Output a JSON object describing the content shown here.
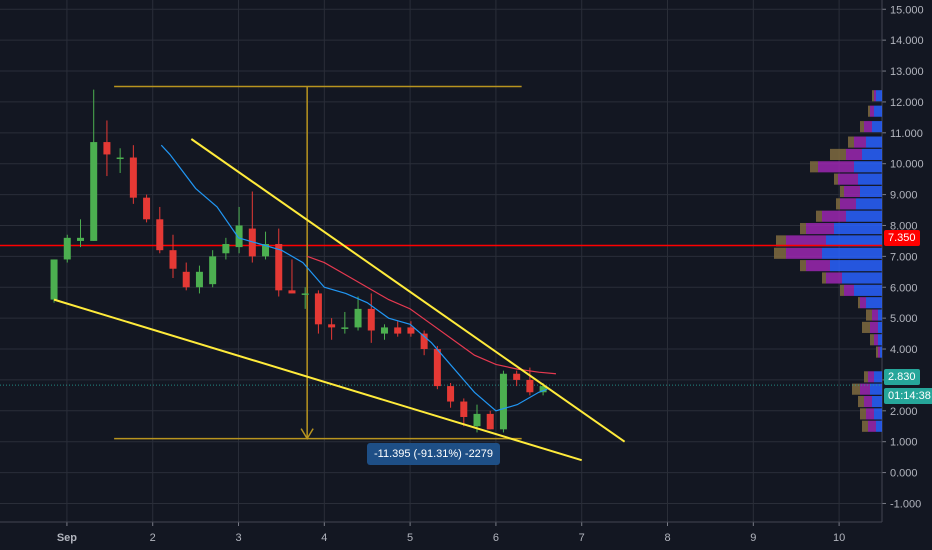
{
  "chart_data": {
    "type": "candlestick",
    "y_axis": {
      "ylim": [
        -1.6,
        15.3
      ],
      "ticks": [
        15,
        14,
        13,
        12,
        11,
        10,
        9,
        8,
        7,
        6,
        5,
        4,
        3,
        2,
        1,
        0,
        -1
      ],
      "tick_labels": [
        "15.000",
        "14.000",
        "13.000",
        "12.000",
        "11.000",
        "10.000",
        "9.000",
        "8.000",
        "7.000",
        "6.000",
        "5.000",
        "4.000",
        "3.000",
        "2.000",
        "1.000",
        "0.000",
        "-1.000"
      ]
    },
    "x_axis": {
      "xlim": [
        0.22,
        10.5
      ],
      "ticks": [
        1,
        2,
        3,
        4,
        5,
        6,
        7,
        8,
        9,
        10
      ],
      "tick_labels": [
        "Sep",
        "2",
        "3",
        "4",
        "5",
        "6",
        "7",
        "8",
        "9",
        "10"
      ]
    },
    "candles": [
      {
        "o": 5.6,
        "h": 6.9,
        "l": 5.5,
        "c": 6.9
      },
      {
        "o": 6.9,
        "h": 7.7,
        "l": 6.8,
        "c": 7.6
      },
      {
        "o": 7.5,
        "h": 8.2,
        "l": 7.3,
        "c": 7.6
      },
      {
        "o": 7.5,
        "h": 12.4,
        "l": 7.5,
        "c": 10.7
      },
      {
        "o": 10.7,
        "h": 11.4,
        "l": 9.6,
        "c": 10.3
      },
      {
        "o": 10.2,
        "h": 10.5,
        "l": 9.7,
        "c": 10.2
      },
      {
        "o": 10.2,
        "h": 10.6,
        "l": 8.7,
        "c": 8.9
      },
      {
        "o": 8.9,
        "h": 9.0,
        "l": 8.1,
        "c": 8.2
      },
      {
        "o": 8.2,
        "h": 8.6,
        "l": 7.1,
        "c": 7.2
      },
      {
        "o": 7.2,
        "h": 7.7,
        "l": 6.3,
        "c": 6.6
      },
      {
        "o": 6.5,
        "h": 6.8,
        "l": 5.9,
        "c": 6.0
      },
      {
        "o": 6.0,
        "h": 6.7,
        "l": 5.8,
        "c": 6.5
      },
      {
        "o": 6.1,
        "h": 7.2,
        "l": 6.0,
        "c": 7.0
      },
      {
        "o": 7.1,
        "h": 7.6,
        "l": 6.9,
        "c": 7.4
      },
      {
        "o": 7.3,
        "h": 8.6,
        "l": 7.1,
        "c": 8.0
      },
      {
        "o": 7.9,
        "h": 9.1,
        "l": 6.8,
        "c": 7.0
      },
      {
        "o": 7.0,
        "h": 7.8,
        "l": 6.9,
        "c": 7.4
      },
      {
        "o": 7.4,
        "h": 7.9,
        "l": 5.7,
        "c": 5.9
      },
      {
        "o": 5.9,
        "h": 6.9,
        "l": 5.8,
        "c": 5.8
      },
      {
        "o": 5.8,
        "h": 6.0,
        "l": 5.3,
        "c": 5.8
      },
      {
        "o": 5.8,
        "h": 5.9,
        "l": 4.5,
        "c": 4.8
      },
      {
        "o": 4.8,
        "h": 5.0,
        "l": 4.3,
        "c": 4.7
      },
      {
        "o": 4.7,
        "h": 5.2,
        "l": 4.5,
        "c": 4.7
      },
      {
        "o": 4.7,
        "h": 5.7,
        "l": 4.6,
        "c": 5.3
      },
      {
        "o": 5.3,
        "h": 5.8,
        "l": 4.2,
        "c": 4.6
      },
      {
        "o": 4.5,
        "h": 4.8,
        "l": 4.3,
        "c": 4.7
      },
      {
        "o": 4.7,
        "h": 4.9,
        "l": 4.4,
        "c": 4.5
      },
      {
        "o": 4.7,
        "h": 4.9,
        "l": 4.4,
        "c": 4.5
      },
      {
        "o": 4.5,
        "h": 4.6,
        "l": 3.8,
        "c": 4.0
      },
      {
        "o": 4.0,
        "h": 4.1,
        "l": 2.7,
        "c": 2.8
      },
      {
        "o": 2.8,
        "h": 2.9,
        "l": 2.1,
        "c": 2.3
      },
      {
        "o": 2.3,
        "h": 2.4,
        "l": 1.5,
        "c": 1.8
      },
      {
        "o": 1.5,
        "h": 2.2,
        "l": 1.3,
        "c": 1.9
      },
      {
        "o": 1.9,
        "h": 2.0,
        "l": 1.4,
        "c": 1.4
      },
      {
        "o": 1.4,
        "h": 3.3,
        "l": 1.3,
        "c": 3.2
      },
      {
        "o": 3.2,
        "h": 3.3,
        "l": 2.8,
        "c": 3.0
      },
      {
        "o": 3.0,
        "h": 3.4,
        "l": 2.5,
        "c": 2.6
      },
      {
        "o": 2.6,
        "h": 2.9,
        "l": 2.5,
        "c": 2.8
      }
    ],
    "ma_blue": [
      [
        2.1,
        10.6
      ],
      [
        2.2,
        10.3
      ],
      [
        2.5,
        9.2
      ],
      [
        2.75,
        8.6
      ],
      [
        3.0,
        7.6
      ],
      [
        3.25,
        7.4
      ],
      [
        3.5,
        7.2
      ],
      [
        3.75,
        6.8
      ],
      [
        4.0,
        6.0
      ],
      [
        4.25,
        5.8
      ],
      [
        4.5,
        5.5
      ],
      [
        4.75,
        5.0
      ],
      [
        5.0,
        4.8
      ],
      [
        5.25,
        4.2
      ],
      [
        5.5,
        3.4
      ],
      [
        5.75,
        2.6
      ],
      [
        6.0,
        2.0
      ],
      [
        6.25,
        2.2
      ],
      [
        6.5,
        2.6
      ],
      [
        6.6,
        2.7
      ]
    ],
    "ma_red": [
      [
        3.8,
        7.0
      ],
      [
        4.0,
        6.8
      ],
      [
        4.25,
        6.4
      ],
      [
        4.5,
        6.0
      ],
      [
        4.75,
        5.6
      ],
      [
        5.0,
        5.3
      ],
      [
        5.25,
        4.8
      ],
      [
        5.5,
        4.3
      ],
      [
        5.75,
        3.8
      ],
      [
        6.0,
        3.5
      ],
      [
        6.25,
        3.35
      ],
      [
        6.5,
        3.25
      ],
      [
        6.7,
        3.2
      ]
    ],
    "horizontal_line": {
      "price": 7.35,
      "color": "#ff0000"
    },
    "current_price_line": {
      "price": 2.83,
      "color": "#26a69a"
    },
    "trend_lines": [
      {
        "from": [
          2.45,
          10.8
        ],
        "to": [
          7.5,
          1.0
        ]
      },
      {
        "from": [
          0.85,
          5.6
        ],
        "to": [
          7.0,
          0.4
        ]
      }
    ],
    "measure_tool": {
      "top_price": 12.5,
      "bottom_price": 1.1,
      "x_from": 1.55,
      "x_to": 6.3,
      "x_arrow": 3.8,
      "label": "-11.395 (-91.31%) -2279"
    },
    "volume_profile": [
      {
        "p": 12.2,
        "buy": 3,
        "sell": 1,
        "val": 1
      },
      {
        "p": 11.7,
        "buy": 4,
        "sell": 2,
        "val": 1
      },
      {
        "p": 11.2,
        "buy": 5,
        "sell": 4,
        "val": 2
      },
      {
        "p": 10.7,
        "buy": 8,
        "sell": 6,
        "val": 3
      },
      {
        "p": 10.3,
        "buy": 10,
        "sell": 8,
        "val": 8
      },
      {
        "p": 9.9,
        "buy": 14,
        "sell": 18,
        "val": 4
      },
      {
        "p": 9.5,
        "buy": 12,
        "sell": 10,
        "val": 2
      },
      {
        "p": 9.1,
        "buy": 11,
        "sell": 8,
        "val": 2
      },
      {
        "p": 8.7,
        "buy": 13,
        "sell": 8,
        "val": 2
      },
      {
        "p": 8.3,
        "buy": 18,
        "sell": 12,
        "val": 3
      },
      {
        "p": 7.9,
        "buy": 24,
        "sell": 14,
        "val": 3
      },
      {
        "p": 7.5,
        "buy": 28,
        "sell": 20,
        "val": 5
      },
      {
        "p": 7.1,
        "buy": 30,
        "sell": 18,
        "val": 6
      },
      {
        "p": 6.7,
        "buy": 26,
        "sell": 12,
        "val": 3
      },
      {
        "p": 6.3,
        "buy": 20,
        "sell": 8,
        "val": 2
      },
      {
        "p": 5.9,
        "buy": 14,
        "sell": 5,
        "val": 2
      },
      {
        "p": 5.5,
        "buy": 8,
        "sell": 3,
        "val": 1
      },
      {
        "p": 5.1,
        "buy": 2,
        "sell": 3,
        "val": 3
      },
      {
        "p": 4.7,
        "buy": 2,
        "sell": 4,
        "val": 4
      },
      {
        "p": 4.3,
        "buy": 2,
        "sell": 2,
        "val": 2
      },
      {
        "p": 3.9,
        "buy": 1,
        "sell": 1,
        "val": 1
      },
      {
        "p": 3.1,
        "buy": 4,
        "sell": 3,
        "val": 2
      },
      {
        "p": 2.7,
        "buy": 6,
        "sell": 5,
        "val": 4
      },
      {
        "p": 2.3,
        "buy": 5,
        "sell": 4,
        "val": 3
      },
      {
        "p": 1.9,
        "buy": 4,
        "sell": 4,
        "val": 3
      },
      {
        "p": 1.5,
        "buy": 3,
        "sell": 4,
        "val": 3
      }
    ],
    "price_labels": {
      "horizontal": "7.350",
      "current": "2.830",
      "countdown": "01:14:38"
    },
    "colors": {
      "background": "#131722",
      "grid": "#2a2e39",
      "up": "#4caf50",
      "down": "#e53935",
      "trend": "#ffeb3b",
      "measure": "#b8941f",
      "ma_blue": "#2196f3",
      "ma_red": "#e53950",
      "vp_buy": "#2962ff",
      "vp_sell": "#9c27b0",
      "vp_value": "#806b3f",
      "axis_text": "#b2b5be"
    }
  }
}
